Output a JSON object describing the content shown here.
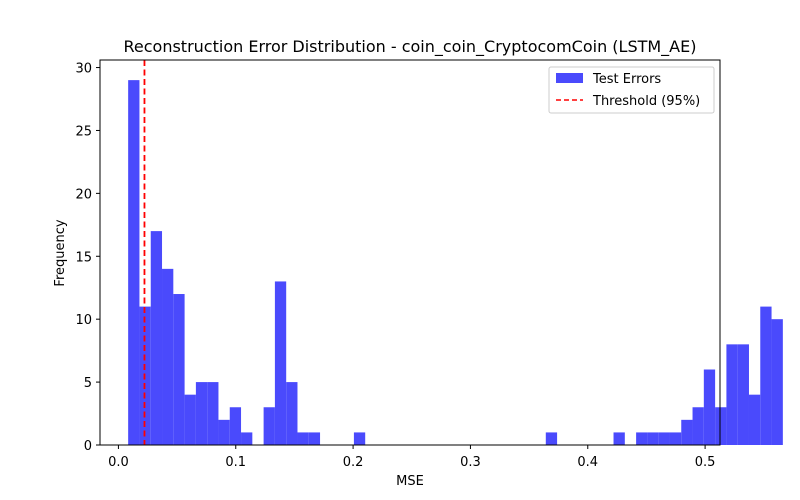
{
  "chart_data": {
    "type": "bar",
    "title": "Reconstruction Error Distribution - coin_coin_CryptocomCoin (LSTM_AE)",
    "xlabel": "MSE",
    "ylabel": "Frequency",
    "xlim": [
      -0.0157,
      0.5127
    ],
    "ylim": [
      0,
      30.6
    ],
    "xticks": [
      0.0,
      0.1,
      0.2,
      0.3,
      0.4,
      0.5
    ],
    "xtick_labels": [
      "0.0",
      "0.1",
      "0.2",
      "0.3",
      "0.4",
      "0.5"
    ],
    "yticks": [
      0,
      5,
      10,
      15,
      20,
      25,
      30
    ],
    "ytick_labels": [
      "0",
      "5",
      "10",
      "15",
      "20",
      "25",
      "30"
    ],
    "grid": false,
    "legend_position": "top-right",
    "series": [
      {
        "name": "Test Errors",
        "kind": "histogram",
        "color": "#4a4afc",
        "bin_start": 0.0083,
        "bin_width": 0.00962,
        "counts": [
          29,
          11,
          17,
          14,
          12,
          4,
          5,
          5,
          2,
          3,
          1,
          0,
          3,
          13,
          5,
          1,
          1,
          0,
          0,
          0,
          1,
          0,
          0,
          0,
          0,
          0,
          0,
          0,
          0,
          0,
          0,
          0,
          0,
          0,
          0,
          0,
          0,
          1,
          0,
          0,
          0,
          0,
          0,
          1,
          0,
          1,
          1,
          1,
          1,
          2,
          3,
          6,
          3,
          8,
          8,
          4,
          11,
          10
        ]
      },
      {
        "name": "Threshold (95%)",
        "kind": "vline",
        "color": "#ff0000",
        "dash": "dashed",
        "x": 0.0222
      }
    ]
  }
}
